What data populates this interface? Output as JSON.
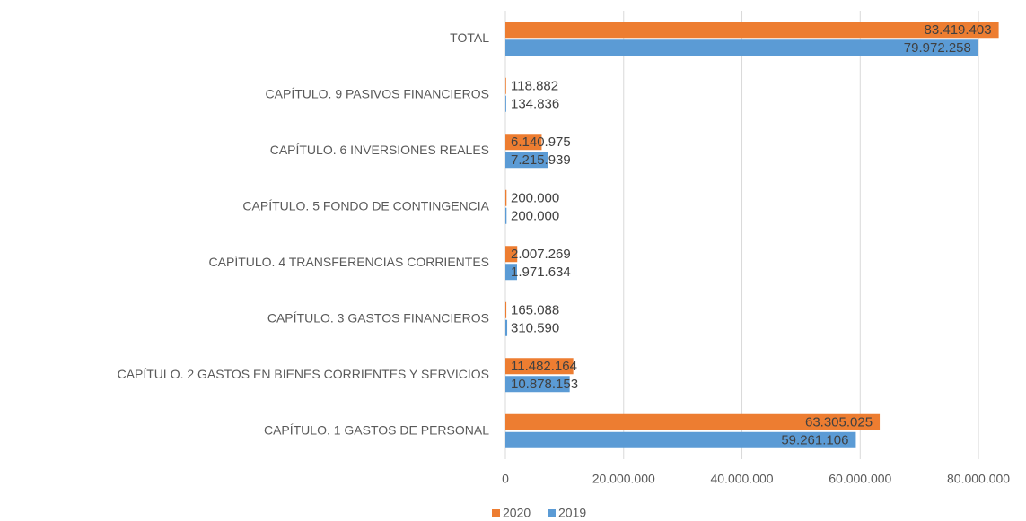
{
  "chart_data": {
    "type": "hbar",
    "categories": [
      "TOTAL",
      "CAPÍTULO. 9  PASIVOS FINANCIEROS",
      "CAPÍTULO. 6  INVERSIONES REALES",
      "CAPÍTULO. 5  FONDO DE CONTINGENCIA",
      "CAPÍTULO. 4  TRANSFERENCIAS CORRIENTES",
      "CAPÍTULO. 3  GASTOS FINANCIEROS",
      "CAPÍTULO. 2  GASTOS EN BIENES CORRIENTES Y SERVICIOS",
      "CAPÍTULO. 1  GASTOS DE PERSONAL"
    ],
    "series": [
      {
        "name": "2020",
        "color": "#ed7d31",
        "values": [
          83419403,
          118882,
          6140975,
          200000,
          2007269,
          165088,
          11482164,
          63305025
        ],
        "value_labels": [
          "83.419.403",
          "118.882",
          "6.140.975",
          "200.000",
          "2.007.269",
          "165.088",
          "11.482.164",
          "63.305.025"
        ]
      },
      {
        "name": "2019",
        "color": "#5b9bd5",
        "values": [
          79972258,
          134836,
          7215939,
          200000,
          1971634,
          310590,
          10878153,
          59261106
        ],
        "value_labels": [
          "79.972.258",
          "134.836",
          "7.215.939",
          "200.000",
          "1.971.634",
          "310.590",
          "10.878.153",
          "59.261.106"
        ]
      }
    ],
    "xlim": [
      0,
      85000000
    ],
    "xticks": [
      0,
      {
        "value": 20000000,
        "label": "20.000.000"
      },
      {
        "value": 40000000,
        "label": "40.000.000"
      },
      {
        "value": 60000000,
        "label": "60.000.000"
      },
      {
        "value": 80000000,
        "label": "80.000.000"
      }
    ],
    "grid": true,
    "legend": "bottom"
  }
}
